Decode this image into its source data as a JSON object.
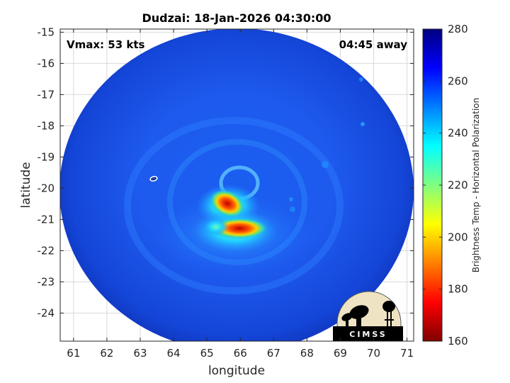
{
  "chart_data": {
    "type": "heatmap",
    "title": "Dudzai: 18-Jan-2026 04:30:00",
    "xlabel": "longitude",
    "ylabel": "latitude",
    "xlim": [
      60.6,
      71.2
    ],
    "ylim": [
      -24.9,
      -14.9
    ],
    "xticks": [
      "61",
      "62",
      "63",
      "64",
      "65",
      "66",
      "67",
      "68",
      "69",
      "70",
      "71"
    ],
    "yticks": [
      "-15",
      "-16",
      "-17",
      "-18",
      "-19",
      "-20",
      "-21",
      "-22",
      "-23",
      "-24"
    ],
    "grid": true,
    "annotations": {
      "vmax": "Vmax: 53 kts",
      "away": "04:45 away"
    },
    "colorbar": {
      "label": "Brightness Temp - Horizontal Polarization",
      "range": [
        160,
        280
      ],
      "ticks": [
        "160",
        "180",
        "200",
        "220",
        "240",
        "260",
        "280"
      ],
      "colors": [
        "#7f0000",
        "#ff0000",
        "#ff8000",
        "#ffff00",
        "#80ff80",
        "#00ffff",
        "#0080ff",
        "#0000ff",
        "#00007f"
      ]
    },
    "swath": {
      "center_lon": 65.7,
      "center_lat": -20.2,
      "background_temp": 262
    },
    "features": [
      {
        "lon": 65.6,
        "lat": -20.6,
        "temp": 192
      },
      {
        "lon": 66.0,
        "lat": -21.3,
        "temp": 192
      },
      {
        "lon": 65.3,
        "lat": -21.2,
        "temp": 215
      }
    ],
    "logo": "CIMSS"
  }
}
